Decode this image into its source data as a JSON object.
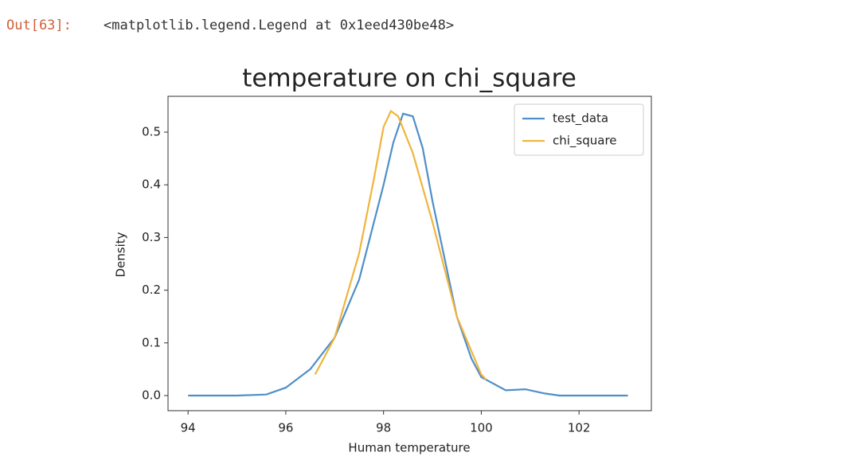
{
  "output": {
    "prompt": "Out[63]:",
    "text": "<matplotlib.legend.Legend at 0x1eed430be48>"
  },
  "chart_data": {
    "type": "line",
    "title": "temperature on chi_square",
    "x_label": "Human temperature",
    "y_label": "Density",
    "series": [
      {
        "name": "test_data",
        "color": "#4f8fc9",
        "x": [
          94,
          95,
          95.6,
          96,
          96.5,
          97,
          97.5,
          98,
          98.2,
          98.4,
          98.6,
          98.8,
          99,
          99.5,
          99.8,
          100,
          100.5,
          100.9,
          101.3,
          101.6,
          103
        ],
        "values": [
          0,
          0,
          0.002,
          0.015,
          0.05,
          0.11,
          0.22,
          0.4,
          0.48,
          0.535,
          0.53,
          0.47,
          0.37,
          0.15,
          0.07,
          0.035,
          0.01,
          0.012,
          0.004,
          0,
          0
        ]
      },
      {
        "name": "chi_square",
        "color": "#f0b43c",
        "x": [
          96.6,
          97,
          97.5,
          97.8,
          98,
          98.15,
          98.3,
          98.6,
          99,
          99.5,
          100,
          100.1
        ],
        "values": [
          0.04,
          0.11,
          0.27,
          0.41,
          0.51,
          0.54,
          0.53,
          0.46,
          0.33,
          0.15,
          0.04,
          0.03
        ]
      }
    ],
    "xlim": [
      93.59,
      103.48
    ],
    "ylim": [
      -0.0287,
      0.568
    ],
    "xticks": [
      94,
      96,
      98,
      100,
      102
    ],
    "yticks": [
      {
        "value": 0,
        "label": "0.0"
      },
      0.1,
      0.2,
      0.3,
      0.4,
      0.5
    ],
    "legend": "upper right"
  }
}
